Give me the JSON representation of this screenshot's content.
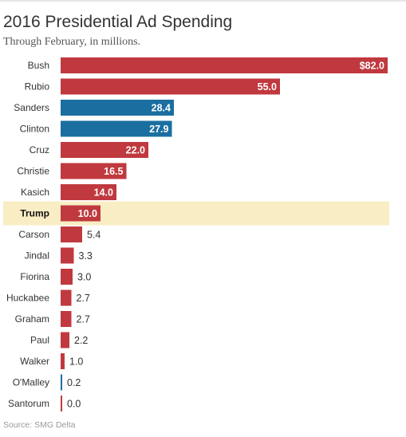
{
  "title": "2016 Presidential Ad Spending",
  "subtitle": "Through February, in millions.",
  "source": "Source: SMG Delta",
  "colors": {
    "republican": "#c0393f",
    "democrat": "#1b6fa0",
    "highlight": "#f9edc4"
  },
  "chart_data": {
    "type": "bar",
    "orientation": "horizontal",
    "title": "2016 Presidential Ad Spending",
    "subtitle": "Through February, in millions.",
    "xlim": [
      0,
      82.0
    ],
    "grid": false,
    "categories": [
      "Bush",
      "Rubio",
      "Sanders",
      "Clinton",
      "Cruz",
      "Christie",
      "Kasich",
      "Trump",
      "Carson",
      "Jindal",
      "Fiorina",
      "Huckabee",
      "Graham",
      "Paul",
      "Walker",
      "O'Malley",
      "Santorum"
    ],
    "values": [
      82.0,
      55.0,
      28.4,
      27.9,
      22.0,
      16.5,
      14.0,
      10.0,
      5.4,
      3.3,
      3.0,
      2.7,
      2.7,
      2.2,
      1.0,
      0.2,
      0.0
    ],
    "value_labels": [
      "$82.0",
      "55.0",
      "28.4",
      "27.9",
      "22.0",
      "16.5",
      "14.0",
      "10.0",
      "5.4",
      "3.3",
      "3.0",
      "2.7",
      "2.7",
      "2.2",
      "1.0",
      "0.2",
      "0.0"
    ],
    "party": [
      "republican",
      "republican",
      "democrat",
      "democrat",
      "republican",
      "republican",
      "republican",
      "republican",
      "republican",
      "republican",
      "republican",
      "republican",
      "republican",
      "republican",
      "republican",
      "democrat",
      "republican"
    ],
    "highlighted": "Trump"
  }
}
